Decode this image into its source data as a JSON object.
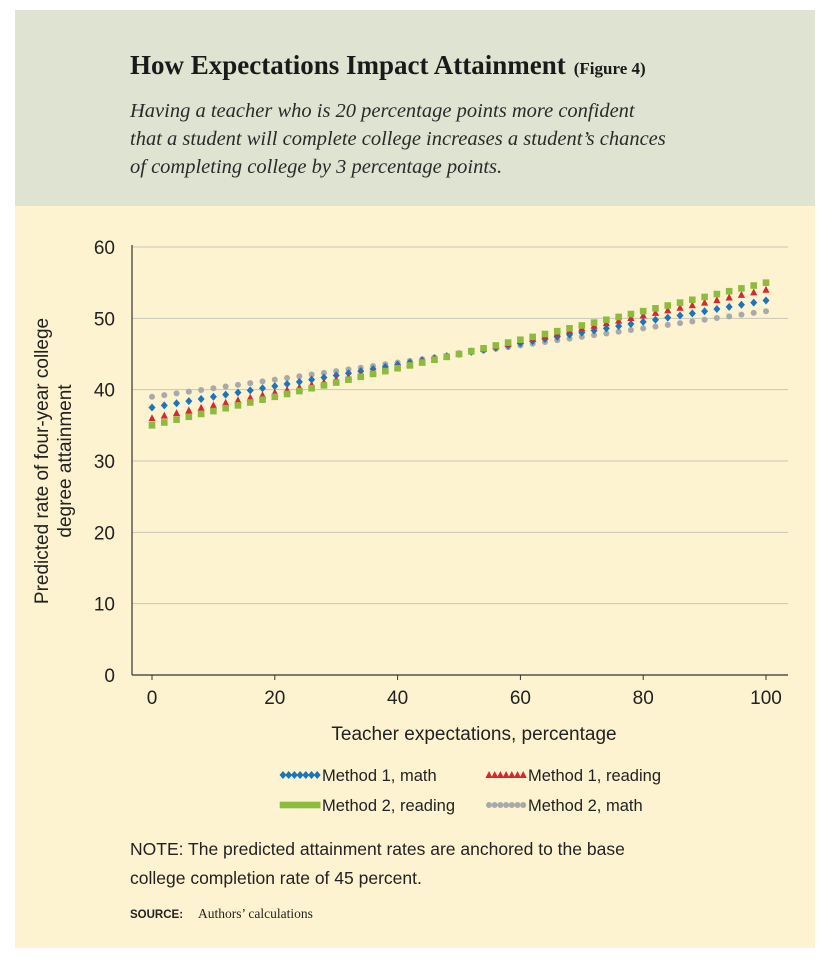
{
  "chart_data": {
    "type": "scatter-line",
    "title": "How Expectations Impact Attainment",
    "title_note": "(Figure 4)",
    "subtitle_lines": [
      "Having a teacher who is 20 percentage points more confident",
      "that a student will complete college increases a student’s chances",
      "of completing college by 3 percentage points."
    ],
    "xlabel": "Teacher expectations, percentage",
    "ylabel_lines": [
      "Predicted rate of four-year college",
      "degree attainment"
    ],
    "x": [
      0,
      2,
      4,
      6,
      8,
      10,
      12,
      14,
      16,
      18,
      20,
      22,
      24,
      26,
      28,
      30,
      32,
      34,
      36,
      38,
      40,
      42,
      44,
      46,
      48,
      50,
      52,
      54,
      56,
      58,
      60,
      62,
      64,
      66,
      68,
      70,
      72,
      74,
      76,
      78,
      80,
      82,
      84,
      86,
      88,
      90,
      92,
      94,
      96,
      98,
      100
    ],
    "series": [
      {
        "name": "Method 1, math",
        "color": "#1b75bc",
        "marker": "diamond",
        "values": [
          37.5,
          37.8,
          38.1,
          38.4,
          38.7,
          39,
          39.3,
          39.6,
          39.9,
          40.2,
          40.5,
          40.8,
          41.1,
          41.4,
          41.7,
          42,
          42.3,
          42.6,
          42.9,
          43.2,
          43.5,
          43.8,
          44.1,
          44.4,
          44.7,
          45,
          45.3,
          45.6,
          45.9,
          46.2,
          46.5,
          46.8,
          47.1,
          47.4,
          47.7,
          48,
          48.3,
          48.6,
          48.9,
          49.2,
          49.5,
          49.8,
          50.1,
          50.4,
          50.7,
          51,
          51.3,
          51.6,
          51.9,
          52.2,
          52.5
        ]
      },
      {
        "name": "Method 1, reading",
        "color": "#d7282f",
        "marker": "triangle",
        "values": [
          36,
          36.36,
          36.72,
          37.08,
          37.44,
          37.8,
          38.16,
          38.52,
          38.88,
          39.24,
          39.6,
          39.96,
          40.32,
          40.68,
          41.04,
          41.4,
          41.76,
          42.12,
          42.48,
          42.84,
          43.2,
          43.56,
          43.92,
          44.28,
          44.64,
          45,
          45.36,
          45.72,
          46.08,
          46.44,
          46.8,
          47.16,
          47.52,
          47.88,
          48.24,
          48.6,
          48.96,
          49.32,
          49.68,
          50.04,
          50.4,
          50.76,
          51.12,
          51.48,
          51.84,
          52.2,
          52.56,
          52.92,
          53.28,
          53.64,
          54
        ]
      },
      {
        "name": "Method 2, reading",
        "color": "#8dbb3e",
        "marker": "square",
        "values": [
          35,
          35.4,
          35.8,
          36.2,
          36.6,
          37,
          37.4,
          37.8,
          38.2,
          38.6,
          39,
          39.4,
          39.8,
          40.2,
          40.6,
          41,
          41.4,
          41.8,
          42.2,
          42.6,
          43,
          43.4,
          43.8,
          44.2,
          44.6,
          45,
          45.4,
          45.8,
          46.2,
          46.6,
          47,
          47.4,
          47.8,
          48.2,
          48.6,
          49,
          49.4,
          49.8,
          50.2,
          50.6,
          51,
          51.4,
          51.8,
          52.2,
          52.6,
          53,
          53.4,
          53.8,
          54.2,
          54.6,
          55
        ]
      },
      {
        "name": "Method 2, math",
        "color": "#a9a9a9",
        "marker": "circle",
        "values": [
          39,
          39.24,
          39.48,
          39.72,
          39.96,
          40.2,
          40.44,
          40.68,
          40.92,
          41.16,
          41.4,
          41.64,
          41.88,
          42.12,
          42.36,
          42.6,
          42.84,
          43.08,
          43.32,
          43.56,
          43.8,
          44.04,
          44.28,
          44.52,
          44.76,
          45,
          45.24,
          45.48,
          45.72,
          45.96,
          46.2,
          46.44,
          46.68,
          46.92,
          47.16,
          47.4,
          47.64,
          47.88,
          48.12,
          48.36,
          48.6,
          48.84,
          49.08,
          49.32,
          49.56,
          49.8,
          50.04,
          50.28,
          50.52,
          50.76,
          51
        ]
      }
    ],
    "xlim": [
      0,
      100
    ],
    "xticks": [
      0,
      20,
      40,
      60,
      80,
      100
    ],
    "ylim": [
      0,
      60
    ],
    "yticks": [
      0,
      10,
      20,
      30,
      40,
      50,
      60
    ],
    "grid": true,
    "legend": "bottom",
    "note_lines": [
      "NOTE: The predicted attainment rates are anchored to the base",
      "college completion rate of 45 percent."
    ],
    "source_label": "SOURCE:",
    "source": "Authors’ calculations"
  }
}
